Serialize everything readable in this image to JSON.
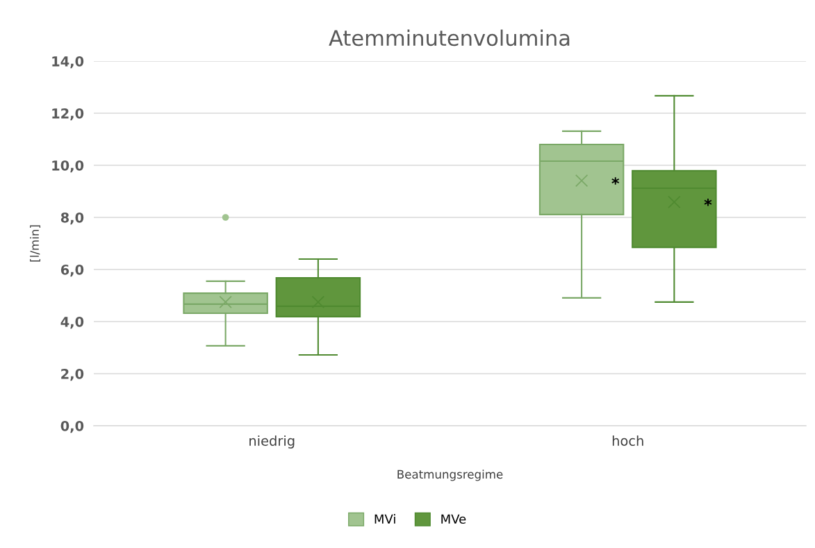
{
  "chart_data": {
    "type": "box",
    "title": "Atemminutenvolumina",
    "xlabel": "Beatmungsregime",
    "ylabel": "[l/min]",
    "categories": [
      "niedrig",
      "hoch"
    ],
    "series": [
      {
        "name": "MVi",
        "color": "#a1c490",
        "boxes": [
          {
            "low": 3.07,
            "q1": 4.32,
            "median": 4.67,
            "q3": 5.09,
            "high": 5.55,
            "mean": 4.75,
            "outliers": [
              8.0
            ]
          },
          {
            "low": 4.91,
            "q1": 8.11,
            "median": 10.16,
            "q3": 10.8,
            "high": 11.31,
            "mean": 9.41
          }
        ]
      },
      {
        "name": "MVe",
        "color": "#60963d",
        "boxes": [
          {
            "low": 2.72,
            "q1": 4.19,
            "median": 4.59,
            "q3": 5.68,
            "high": 6.4,
            "mean": 4.75
          },
          {
            "low": 4.75,
            "q1": 6.85,
            "median": 9.12,
            "q3": 9.79,
            "high": 12.67,
            "mean": 8.59
          }
        ]
      }
    ],
    "ylim": [
      0,
      14
    ],
    "yticks": [
      {
        "value": 0,
        "label": "0,0"
      },
      {
        "value": 2,
        "label": "2,0"
      },
      {
        "value": 4,
        "label": "4,0"
      },
      {
        "value": 6,
        "label": "6,0"
      },
      {
        "value": 8,
        "label": "8,0"
      },
      {
        "value": 10,
        "label": "10,0"
      },
      {
        "value": 12,
        "label": "12,0"
      },
      {
        "value": 14,
        "label": "14,0"
      }
    ],
    "annotations": [
      "*",
      "*"
    ],
    "grid": "y",
    "legend": "bottom"
  }
}
